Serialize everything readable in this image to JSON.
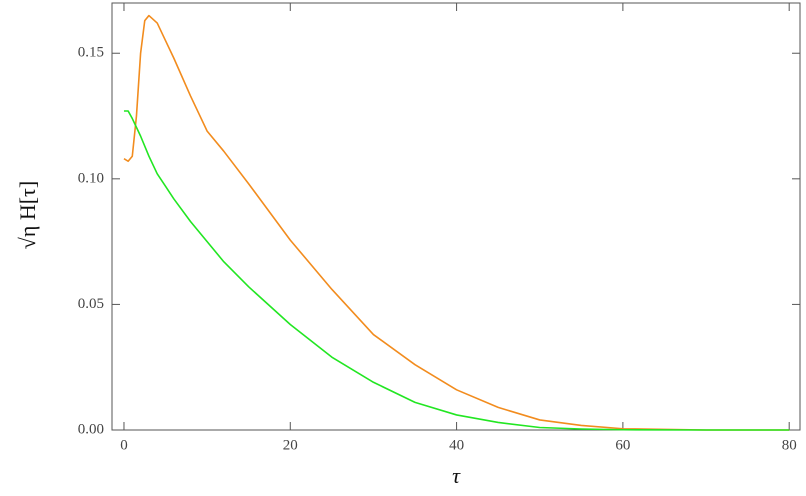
{
  "chart_data": {
    "type": "line",
    "x_label": "τ",
    "y_label": "√η H[τ]",
    "series": [
      {
        "color": "#f28c1e",
        "x": [
          0,
          0.5,
          1,
          1.5,
          2,
          2.5,
          3,
          4,
          5,
          6,
          8,
          10,
          12,
          15,
          20,
          25,
          30,
          35,
          40,
          45,
          50,
          55,
          60,
          70,
          80
        ],
        "values": [
          0.108,
          0.107,
          0.109,
          0.125,
          0.15,
          0.163,
          0.165,
          0.162,
          0.155,
          0.148,
          0.133,
          0.119,
          0.111,
          0.098,
          0.0756,
          0.056,
          0.038,
          0.026,
          0.016,
          0.009,
          0.004,
          0.0018,
          0.0005,
          0,
          0
        ]
      },
      {
        "color": "#22e622",
        "x": [
          0,
          0.5,
          1,
          2,
          3,
          4,
          5,
          6,
          8,
          10,
          12,
          15,
          20,
          25,
          30,
          35,
          40,
          45,
          50,
          55,
          60,
          70,
          80
        ],
        "values": [
          0.127,
          0.127,
          0.124,
          0.117,
          0.109,
          0.102,
          0.097,
          0.092,
          0.083,
          0.075,
          0.067,
          0.057,
          0.042,
          0.029,
          0.019,
          0.011,
          0.006,
          0.003,
          0.001,
          0.0004,
          0.0001,
          0,
          0
        ]
      }
    ],
    "xlim": [
      -1.44,
      81.3
    ],
    "ylim": [
      0,
      0.17
    ],
    "xticks": [
      0,
      20,
      40,
      60,
      80
    ],
    "yticks": [
      {
        "value": 0,
        "label": "0.00"
      },
      {
        "value": 0.05,
        "label": "0.05"
      },
      {
        "value": 0.1,
        "label": "0.10"
      },
      {
        "value": 0.15,
        "label": "0.15"
      }
    ],
    "grid": false
  }
}
